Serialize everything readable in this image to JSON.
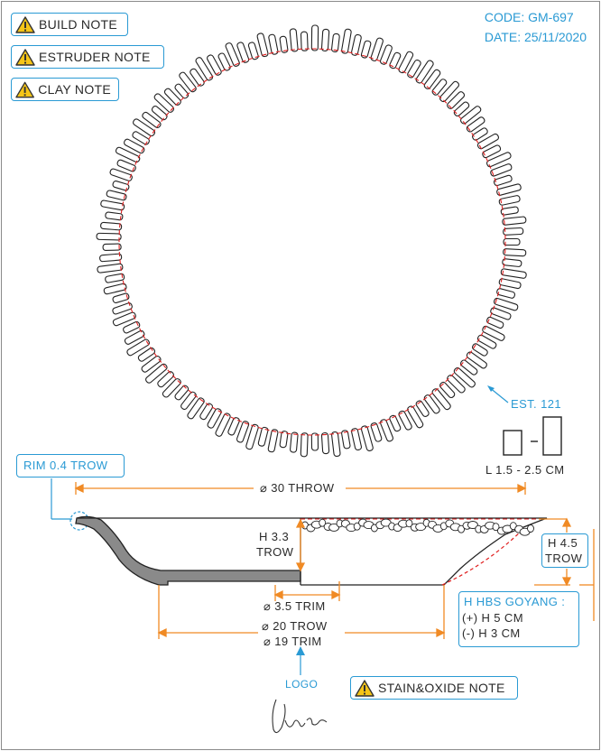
{
  "notes": {
    "build": "BUILD NOTE",
    "estruder": "ESTRUDER NOTE",
    "clay": "CLAY NOTE",
    "stain_oxide": "STAIN&OXIDE NOTE"
  },
  "meta": {
    "code": "CODE: GM-697",
    "date": "DATE: 25/11/2020"
  },
  "top_view": {
    "est_label": "EST. 121",
    "length_label": "L 1.5 - 2.5 CM"
  },
  "section": {
    "rim": "RIM 0.4 TROW",
    "diameter_throw": "⌀ 30 THROW",
    "height_left_1": "H 3.3",
    "height_left_2": "TROW",
    "height_right_1": "H 4.5",
    "height_right_2": "TROW",
    "foot_trim": "⌀ 3.5 TRIM",
    "base_trow": "⌀ 20 TROW",
    "base_trim": "⌀ 19 TRIM",
    "hbs_title": "H HBS GOYANG :",
    "hbs_plus": "(+) H 5 CM",
    "hbs_minus": "(-) H 3 CM",
    "logo": "LOGO"
  },
  "colors": {
    "accent_blue": "#2a9ad4",
    "dimension_orange": "#f08a24",
    "guide_red": "#e02020",
    "glaze_grey": "#8a8a8a",
    "warning_yellow": "#f5c518"
  }
}
